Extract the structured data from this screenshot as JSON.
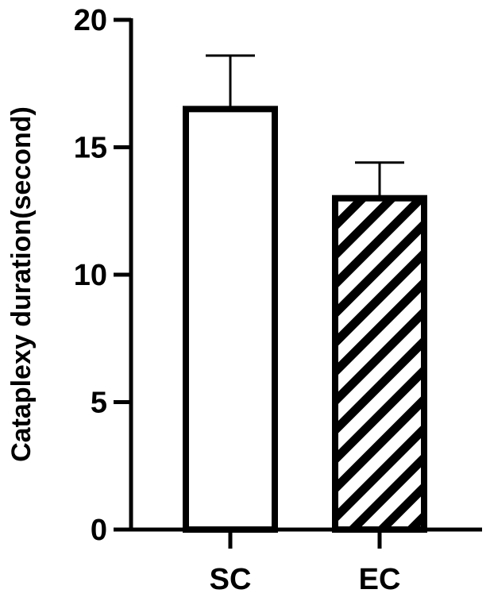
{
  "chart_data": {
    "type": "bar",
    "title": "",
    "xlabel": "",
    "ylabel": "Cataplexy duration(second)",
    "ylim": [
      0,
      20
    ],
    "yticks": [
      0,
      5,
      10,
      15,
      20
    ],
    "grid": false,
    "categories": [
      "SC",
      "EC"
    ],
    "values": [
      16.5,
      13.0
    ],
    "errors": [
      2.1,
      1.4
    ],
    "fills": [
      "solid",
      "hatched"
    ],
    "colors": {
      "stroke": "#000000",
      "fill": "#ffffff"
    }
  }
}
